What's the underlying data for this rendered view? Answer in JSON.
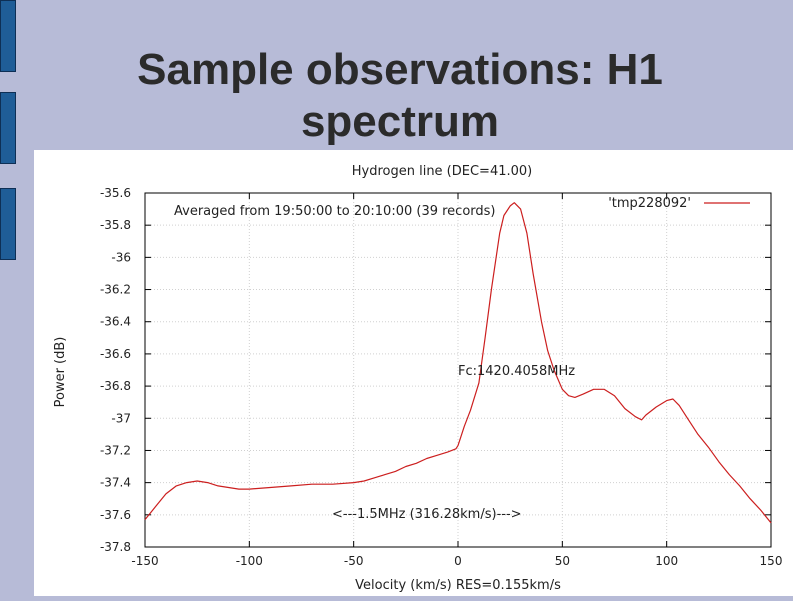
{
  "slide": {
    "title_line1": "Sample observations: H1",
    "title_line2": "spectrum"
  },
  "colors": {
    "background": "#b7bbd7",
    "accent_tab": "#1f5d97",
    "series": "#cc1f1f",
    "grid": "#d0d0d0",
    "text": "#2b2b2b"
  },
  "chart_data": {
    "type": "line",
    "title": "Hydrogen line (DEC=41.00)",
    "xlabel": "Velocity (km/s) RES=0.155km/s",
    "ylabel": "Power (dB)",
    "xlim": [
      -150,
      150
    ],
    "ylim": [
      -37.8,
      -35.6
    ],
    "xticks": [
      -150,
      -100,
      -50,
      0,
      50,
      100,
      150
    ],
    "yticks": [
      -35.6,
      -35.8,
      -36,
      -36.2,
      -36.4,
      -36.6,
      -36.8,
      -37,
      -37.2,
      -37.4,
      -37.6,
      -37.8
    ],
    "grid": true,
    "legend_position": "top-right",
    "annotations": {
      "averaged": "Averaged from 19:50:00 to 20:10:00 (39 records)",
      "fc": "Fc:1420.4058MHz",
      "bandwidth": "<---1.5MHz (316.28km/s)--->"
    },
    "series": [
      {
        "name": "'tmp228092'",
        "x": [
          -150,
          -145,
          -140,
          -135,
          -130,
          -125,
          -120,
          -115,
          -110,
          -105,
          -100,
          -90,
          -80,
          -70,
          -60,
          -50,
          -45,
          -40,
          -35,
          -30,
          -25,
          -20,
          -15,
          -10,
          -5,
          -1,
          0,
          1,
          3,
          6,
          10,
          13,
          16,
          20,
          22,
          25,
          27,
          30,
          33,
          36,
          40,
          43,
          46,
          50,
          53,
          56,
          60,
          65,
          70,
          75,
          80,
          85,
          88,
          90,
          95,
          100,
          103,
          106,
          110,
          115,
          120,
          125,
          130,
          135,
          140,
          145,
          150
        ],
        "y": [
          -37.63,
          -37.55,
          -37.47,
          -37.42,
          -37.4,
          -37.39,
          -37.4,
          -37.42,
          -37.43,
          -37.44,
          -37.44,
          -37.43,
          -37.42,
          -37.41,
          -37.41,
          -37.4,
          -37.39,
          -37.37,
          -37.35,
          -37.33,
          -37.3,
          -37.28,
          -37.25,
          -37.23,
          -37.21,
          -37.19,
          -37.17,
          -37.13,
          -37.05,
          -36.95,
          -36.78,
          -36.5,
          -36.2,
          -35.85,
          -35.74,
          -35.68,
          -35.66,
          -35.7,
          -35.85,
          -36.1,
          -36.4,
          -36.58,
          -36.7,
          -36.82,
          -36.86,
          -36.87,
          -36.85,
          -36.82,
          -36.82,
          -36.86,
          -36.94,
          -36.99,
          -37.01,
          -36.98,
          -36.93,
          -36.89,
          -36.88,
          -36.92,
          -37,
          -37.1,
          -37.18,
          -37.27,
          -37.35,
          -37.42,
          -37.5,
          -37.57,
          -37.65
        ]
      }
    ]
  }
}
